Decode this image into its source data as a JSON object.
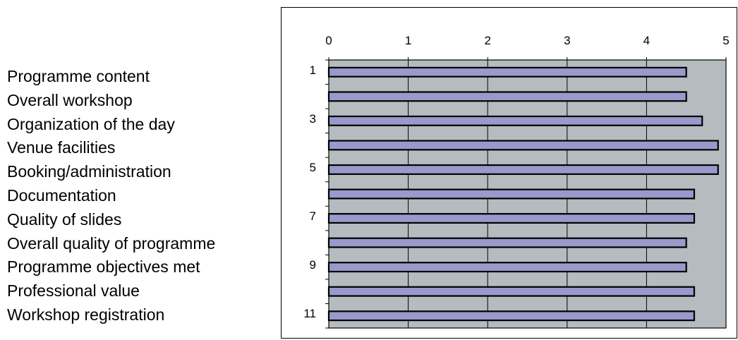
{
  "labels": [
    "Programme content",
    "Overall workshop",
    "Organization of the day",
    "Venue facilities",
    "Booking/administration",
    "Documentation",
    "Quality of slides",
    "Overall quality of programme",
    "Programme objectives met",
    "Professional value",
    "Workshop registration"
  ],
  "chart_data": {
    "type": "bar",
    "orientation": "horizontal",
    "categories": [
      "1",
      "2",
      "3",
      "4",
      "5",
      "6",
      "7",
      "8",
      "9",
      "10",
      "11"
    ],
    "category_tick_labels": [
      "1",
      "",
      "3",
      "",
      "5",
      "",
      "7",
      "",
      "9",
      "",
      "11"
    ],
    "values": [
      4.5,
      4.5,
      4.7,
      4.9,
      4.9,
      4.6,
      4.6,
      4.5,
      4.5,
      4.6,
      4.6
    ],
    "x_ticks": [
      0,
      1,
      2,
      3,
      4,
      5
    ],
    "xlim": [
      0,
      5
    ],
    "x_axis_position": "top",
    "grid": "vertical",
    "title": "",
    "xlabel": "",
    "ylabel": "",
    "colors": {
      "bar_fill": "#9999cc",
      "bar_stroke": "#000000",
      "plot_background": "#b4bcbf",
      "gridline": "#000000",
      "frame": "#000000"
    }
  }
}
